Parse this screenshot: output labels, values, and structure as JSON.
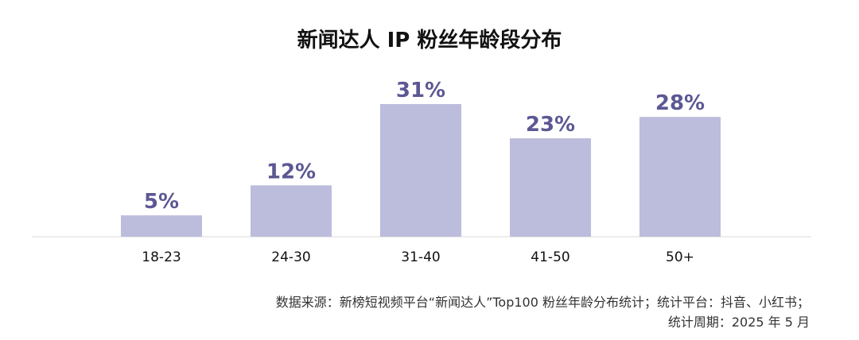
{
  "chart_data": {
    "type": "bar",
    "title": "新闻达人 IP 粉丝年龄段分布",
    "categories": [
      "18-23",
      "24-30",
      "31-40",
      "41-50",
      "50+"
    ],
    "values": [
      5,
      12,
      31,
      23,
      28
    ],
    "data_labels": [
      "5%",
      "12%",
      "31%",
      "23%",
      "28%"
    ],
    "unit": "%",
    "xlabel": "",
    "ylabel": "",
    "ylim": [
      0,
      31
    ],
    "grid": false,
    "legend": "none",
    "bar_color": "#bcbcdc",
    "label_color": "#5b5893"
  },
  "source": {
    "line1": "数据来源：新榜短视频平台“新闻达人”Top100 粉丝年龄分布统计；统计平台：抖音、小红书；",
    "line2": "统计周期：2025 年 5 月"
  }
}
